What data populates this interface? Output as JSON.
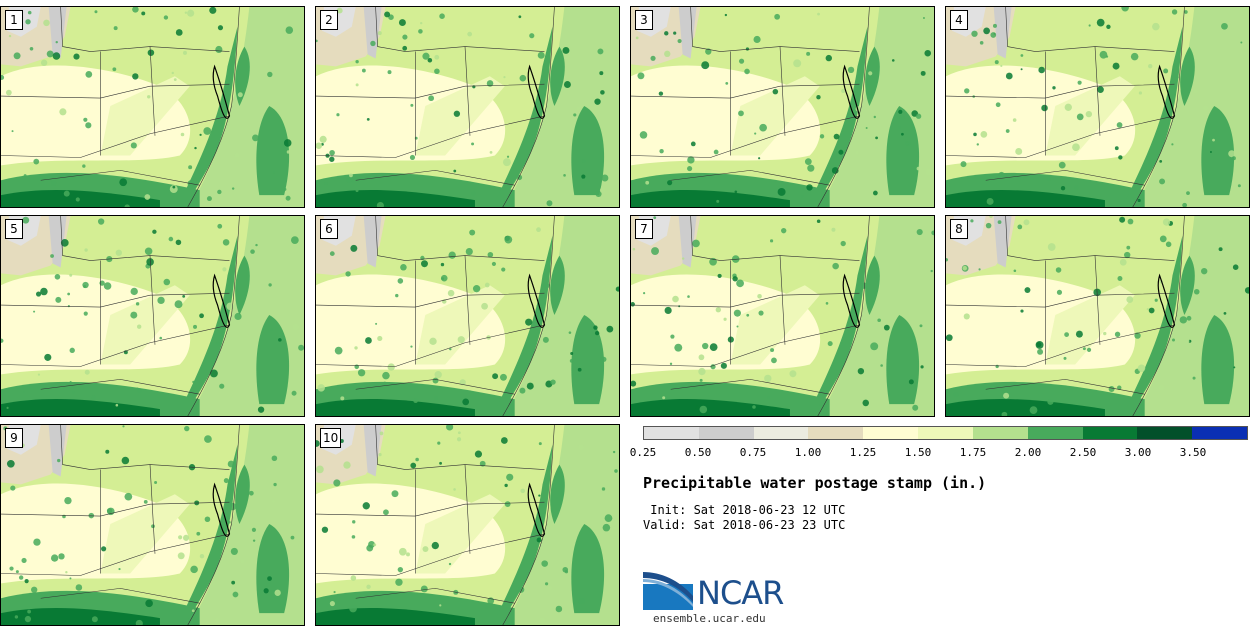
{
  "panels": [
    {
      "label": "1"
    },
    {
      "label": "2"
    },
    {
      "label": "3"
    },
    {
      "label": "4"
    },
    {
      "label": "5"
    },
    {
      "label": "6"
    },
    {
      "label": "7"
    },
    {
      "label": "8"
    },
    {
      "label": "9"
    },
    {
      "label": "10"
    }
  ],
  "legend": {
    "colors": [
      "#e1e1e1",
      "#cdcdcd",
      "#ecece0",
      "#e5dcbe",
      "#fffdd2",
      "#eef8b9",
      "#b4e08e",
      "#48aa5c",
      "#087a34",
      "#03502a",
      "#0a2fb4"
    ],
    "ticks": [
      "0.25",
      "0.50",
      "0.75",
      "1.00",
      "1.25",
      "1.50",
      "1.75",
      "2.00",
      "2.50",
      "3.00",
      "3.50"
    ]
  },
  "title": "Precipitable water postage stamp (in.)",
  "init": " Init: Sat 2018-06-23 12 UTC",
  "valid": "Valid: Sat 2018-06-23 23 UTC",
  "logo": {
    "word": "NCAR",
    "colors": {
      "blue": "#1878c0",
      "navy": "#1d4f8c"
    }
  },
  "site": "ensemble.ucar.edu"
}
